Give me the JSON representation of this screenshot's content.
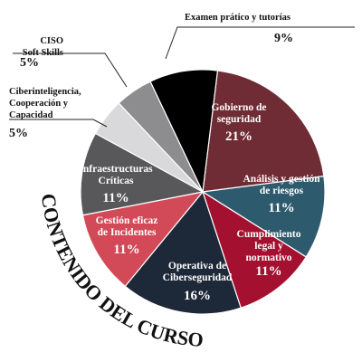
{
  "chart_data": {
    "type": "pie",
    "curved_title": "CONTENIDO DEL CURSO",
    "slices": [
      {
        "lines": [
          "Gobierno de",
          "seguridad"
        ],
        "pct_label": "21%",
        "value": 21,
        "color": "#6f2c34",
        "label_position": "inside"
      },
      {
        "lines": [
          "Análisis y gestión",
          "de riesgos"
        ],
        "pct_label": "11%",
        "value": 11,
        "color": "#2e5a6d",
        "label_position": "inside"
      },
      {
        "lines": [
          "Cumplimiento",
          "legal y",
          "normativo"
        ],
        "pct_label": "11%",
        "value": 11,
        "color": "#a4102f",
        "label_position": "inside"
      },
      {
        "lines": [
          "Operativa de",
          "Ciberseguridad"
        ],
        "pct_label": "16%",
        "value": 16,
        "color": "#1d2838",
        "label_position": "inside"
      },
      {
        "lines": [
          "Gestión eficaz",
          "de Incidentes"
        ],
        "pct_label": "11%",
        "value": 11,
        "color": "#d24a57",
        "label_position": "inside"
      },
      {
        "lines": [
          "Infraestructuras",
          "Críticas"
        ],
        "pct_label": "11%",
        "value": 11,
        "color": "#58585a",
        "label_position": "inside"
      },
      {
        "lines": [
          "Ciberinteligencia,",
          "Cooperación y",
          "Capacidad"
        ],
        "pct_label": "5%",
        "value": 5,
        "color": "#d9d9db",
        "label_position": "outside"
      },
      {
        "lines": [
          "CISO",
          "Soft Skills"
        ],
        "pct_label": "5%",
        "value": 5,
        "color": "#8d8d90",
        "label_position": "outside"
      },
      {
        "lines": [
          "Examen prático y tutorías"
        ],
        "pct_label": "9%",
        "value": 9,
        "color": "#000000",
        "label_position": "outside"
      }
    ]
  }
}
